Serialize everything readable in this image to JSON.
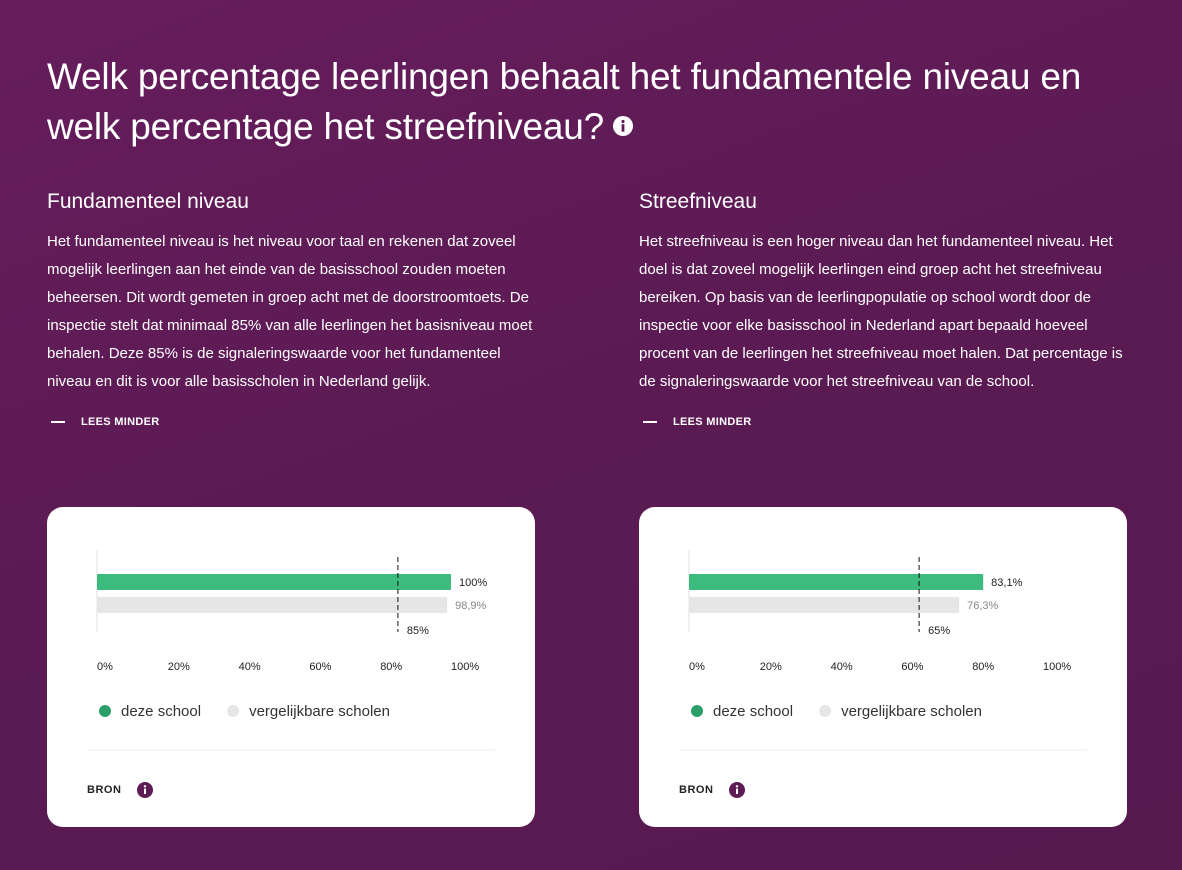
{
  "header": {
    "title": "Welk percentage leerlingen behaalt het fundamentele niveau en welk percentage het streefniveau?"
  },
  "sections": [
    {
      "heading": "Fundamenteel niveau",
      "body": "Het fundamenteel niveau is het niveau voor taal en rekenen dat zoveel mogelijk leerlingen aan het einde van de basisschool zouden moeten beheersen. Dit wordt gemeten in groep acht met de doorstroomtoets. De inspectie stelt dat minimaal 85% van alle leerlingen het basisniveau moet behalen. Deze 85% is de signaleringswaarde voor het fundamenteel niveau en dit is voor alle basisscholen in Nederland gelijk.",
      "toggle": "LEES MINDER",
      "source": "BRON"
    },
    {
      "heading": "Streefniveau",
      "body": "Het streefniveau is een hoger niveau dan het fundamenteel niveau. Het doel is dat zoveel mogelijk leerlingen eind groep acht het streefniveau bereiken. Op basis van de leerlingpopulatie op school wordt door de inspectie voor elke basisschool in Nederland apart bepaald hoeveel procent van de leerlingen het streefniveau moet halen. Dat percentage is de signaleringswaarde voor het streefniveau van de school.",
      "toggle": "LEES MINDER",
      "source": "BRON"
    }
  ],
  "chart_data": [
    {
      "type": "bar",
      "orientation": "horizontal",
      "categories": [
        null
      ],
      "series": [
        {
          "name": "deze school",
          "color": "#3dbb7e",
          "values": [
            100
          ],
          "value_labels": [
            "100%"
          ]
        },
        {
          "name": "vergelijkbare scholen",
          "color": "#e6e6e6",
          "values": [
            98.9
          ],
          "value_labels": [
            "98,9%"
          ]
        }
      ],
      "xlim": [
        0,
        100
      ],
      "xticks": [
        {
          "value": 0,
          "label": "0%"
        },
        {
          "value": 20,
          "label": "20%"
        },
        {
          "value": 40,
          "label": "40%"
        },
        {
          "value": 60,
          "label": "60%"
        },
        {
          "value": 80,
          "label": "80%"
        },
        {
          "value": 100,
          "label": "100%"
        }
      ],
      "reference": {
        "value": 85,
        "label": "85%"
      }
    },
    {
      "type": "bar",
      "orientation": "horizontal",
      "categories": [
        null
      ],
      "series": [
        {
          "name": "deze school",
          "color": "#3dbb7e",
          "values": [
            83.1
          ],
          "value_labels": [
            "83,1%"
          ]
        },
        {
          "name": "vergelijkbare scholen",
          "color": "#e6e6e6",
          "values": [
            76.3
          ],
          "value_labels": [
            "76,3%"
          ]
        }
      ],
      "xlim": [
        0,
        100
      ],
      "xticks": [
        {
          "value": 0,
          "label": "0%"
        },
        {
          "value": 20,
          "label": "20%"
        },
        {
          "value": 40,
          "label": "40%"
        },
        {
          "value": 60,
          "label": "60%"
        },
        {
          "value": 80,
          "label": "80%"
        },
        {
          "value": 100,
          "label": "100%"
        }
      ],
      "reference": {
        "value": 65,
        "label": "65%"
      }
    }
  ]
}
